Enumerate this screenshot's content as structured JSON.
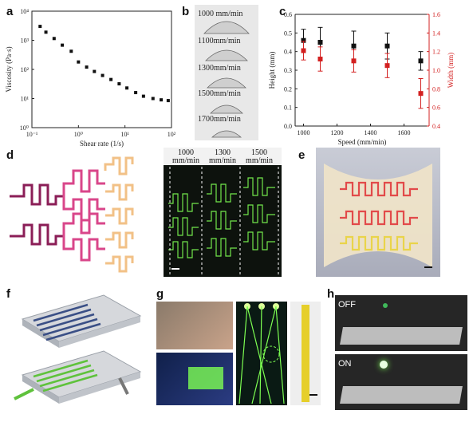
{
  "panel_labels": {
    "a": "a",
    "b": "b",
    "c": "c",
    "d": "d",
    "e": "e",
    "f": "f",
    "g": "g",
    "h": "h"
  },
  "colors": {
    "height_series": "#111111",
    "width_series": "#d32020",
    "glow": "#7dff52",
    "serp1": "#8b1e57",
    "serp2": "#d9468a",
    "serp3": "#f2c187"
  },
  "chart_data": [
    {
      "type": "scatter",
      "xlabel": "Shear rate (1/s)",
      "ylabel": "Viscosity (Pa·s)",
      "x_scale": "log",
      "y_scale": "log",
      "xlim": [
        0.1,
        100
      ],
      "ylim": [
        1,
        10000
      ],
      "x_ticks": [
        "10⁻¹",
        "10⁰",
        "10¹",
        "10²"
      ],
      "y_ticks": [
        "10⁰",
        "10¹",
        "10²",
        "10³",
        "10⁴"
      ],
      "series": [
        {
          "x": [
            0.15,
            0.2,
            0.3,
            0.45,
            0.7,
            1.0,
            1.5,
            2.2,
            3.3,
            5,
            7.5,
            11,
            17,
            25,
            40,
            60,
            85
          ],
          "y": [
            3000,
            1900,
            1150,
            680,
            420,
            180,
            120,
            85,
            62,
            45,
            32,
            23,
            16,
            12,
            10,
            9,
            8.5
          ]
        }
      ]
    },
    {
      "type": "scatter",
      "xlabel": "Speed (mm/min)",
      "ylabel": "Height (mm)",
      "ylabel_right": "Width (mm)",
      "xlim": [
        950,
        1750
      ],
      "ylim": [
        0,
        0.6
      ],
      "ylim_right": [
        0.4,
        1.6
      ],
      "x_ticks": [
        "1000",
        "1200",
        "1400",
        "1600"
      ],
      "y_ticks": [
        "0.0",
        "0.1",
        "0.2",
        "0.3",
        "0.4",
        "0.5",
        "0.6"
      ],
      "y_right_ticks": [
        "0.4",
        "0.6",
        "0.8",
        "1.0",
        "1.2",
        "1.4",
        "1.6"
      ],
      "series": [
        {
          "axis": "left",
          "x": [
            1000,
            1100,
            1300,
            1500,
            1700
          ],
          "y": [
            0.46,
            0.45,
            0.43,
            0.43,
            0.35
          ],
          "err": [
            0.06,
            0.08,
            0.08,
            0.07,
            0.05
          ]
        },
        {
          "axis": "right",
          "x": [
            1000,
            1100,
            1300,
            1500,
            1700
          ],
          "y": [
            1.21,
            1.12,
            1.1,
            1.05,
            0.75
          ],
          "err": [
            0.1,
            0.13,
            0.12,
            0.13,
            0.16
          ]
        }
      ]
    }
  ],
  "b_labels": [
    "1000 mm/min",
    "1100mm/min",
    "1300mm/min",
    "1500mm/min",
    "1700mm/min"
  ],
  "d_speeds": [
    {
      "value": "1000",
      "unit": "mm/min"
    },
    {
      "value": "1300",
      "unit": "mm/min"
    },
    {
      "value": "1500",
      "unit": "mm/min"
    }
  ],
  "h_states": {
    "off": "OFF",
    "on": "ON"
  }
}
